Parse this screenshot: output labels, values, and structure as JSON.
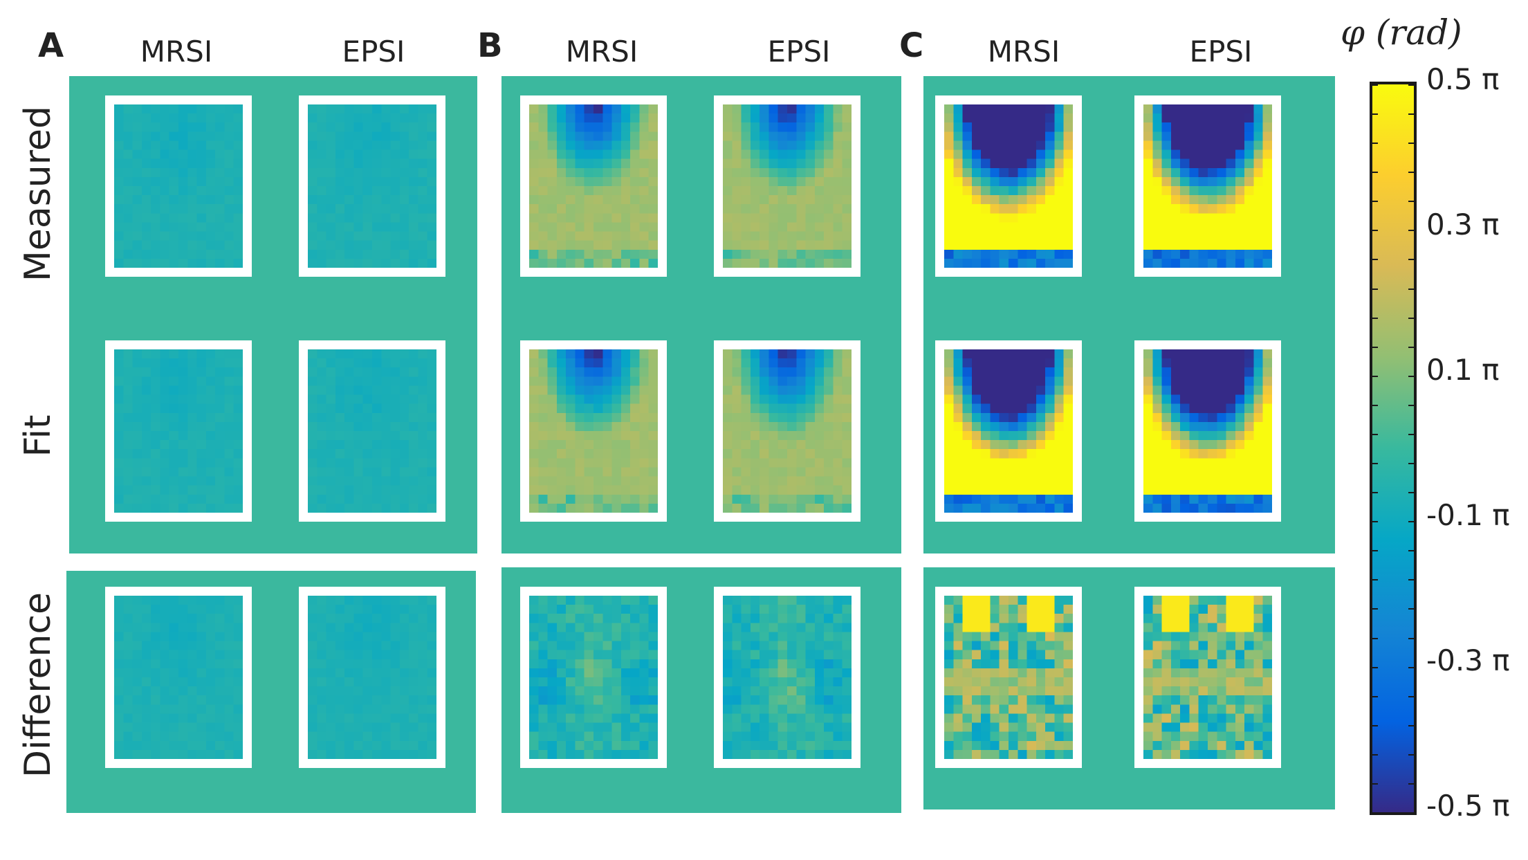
{
  "panels": {
    "A": {
      "letter": "A",
      "col1": "MRSI",
      "col2": "EPSI"
    },
    "B": {
      "letter": "B",
      "col1": "MRSI",
      "col2": "EPSI"
    },
    "C": {
      "letter": "C",
      "col1": "MRSI",
      "col2": "EPSI"
    }
  },
  "rows": {
    "measured": "Measured",
    "fit": "Fit",
    "difference": "Difference"
  },
  "colorbar": {
    "title": "φ (rad)",
    "ticks": [
      "0.5 π",
      "0.3 π",
      "0.1 π",
      "-0.1 π",
      "-0.3 π",
      "-0.5 π"
    ],
    "range": [
      -0.5,
      0.5
    ],
    "units": "π rad"
  },
  "colors": {
    "background": "#3bb89e",
    "frame": "#ffffff",
    "colormap": [
      "#352a87",
      "#0363e1",
      "#1485d4",
      "#06a7c6",
      "#38b99e",
      "#92bf73",
      "#d9ba56",
      "#fcce2e",
      "#f9fb0e"
    ]
  }
}
